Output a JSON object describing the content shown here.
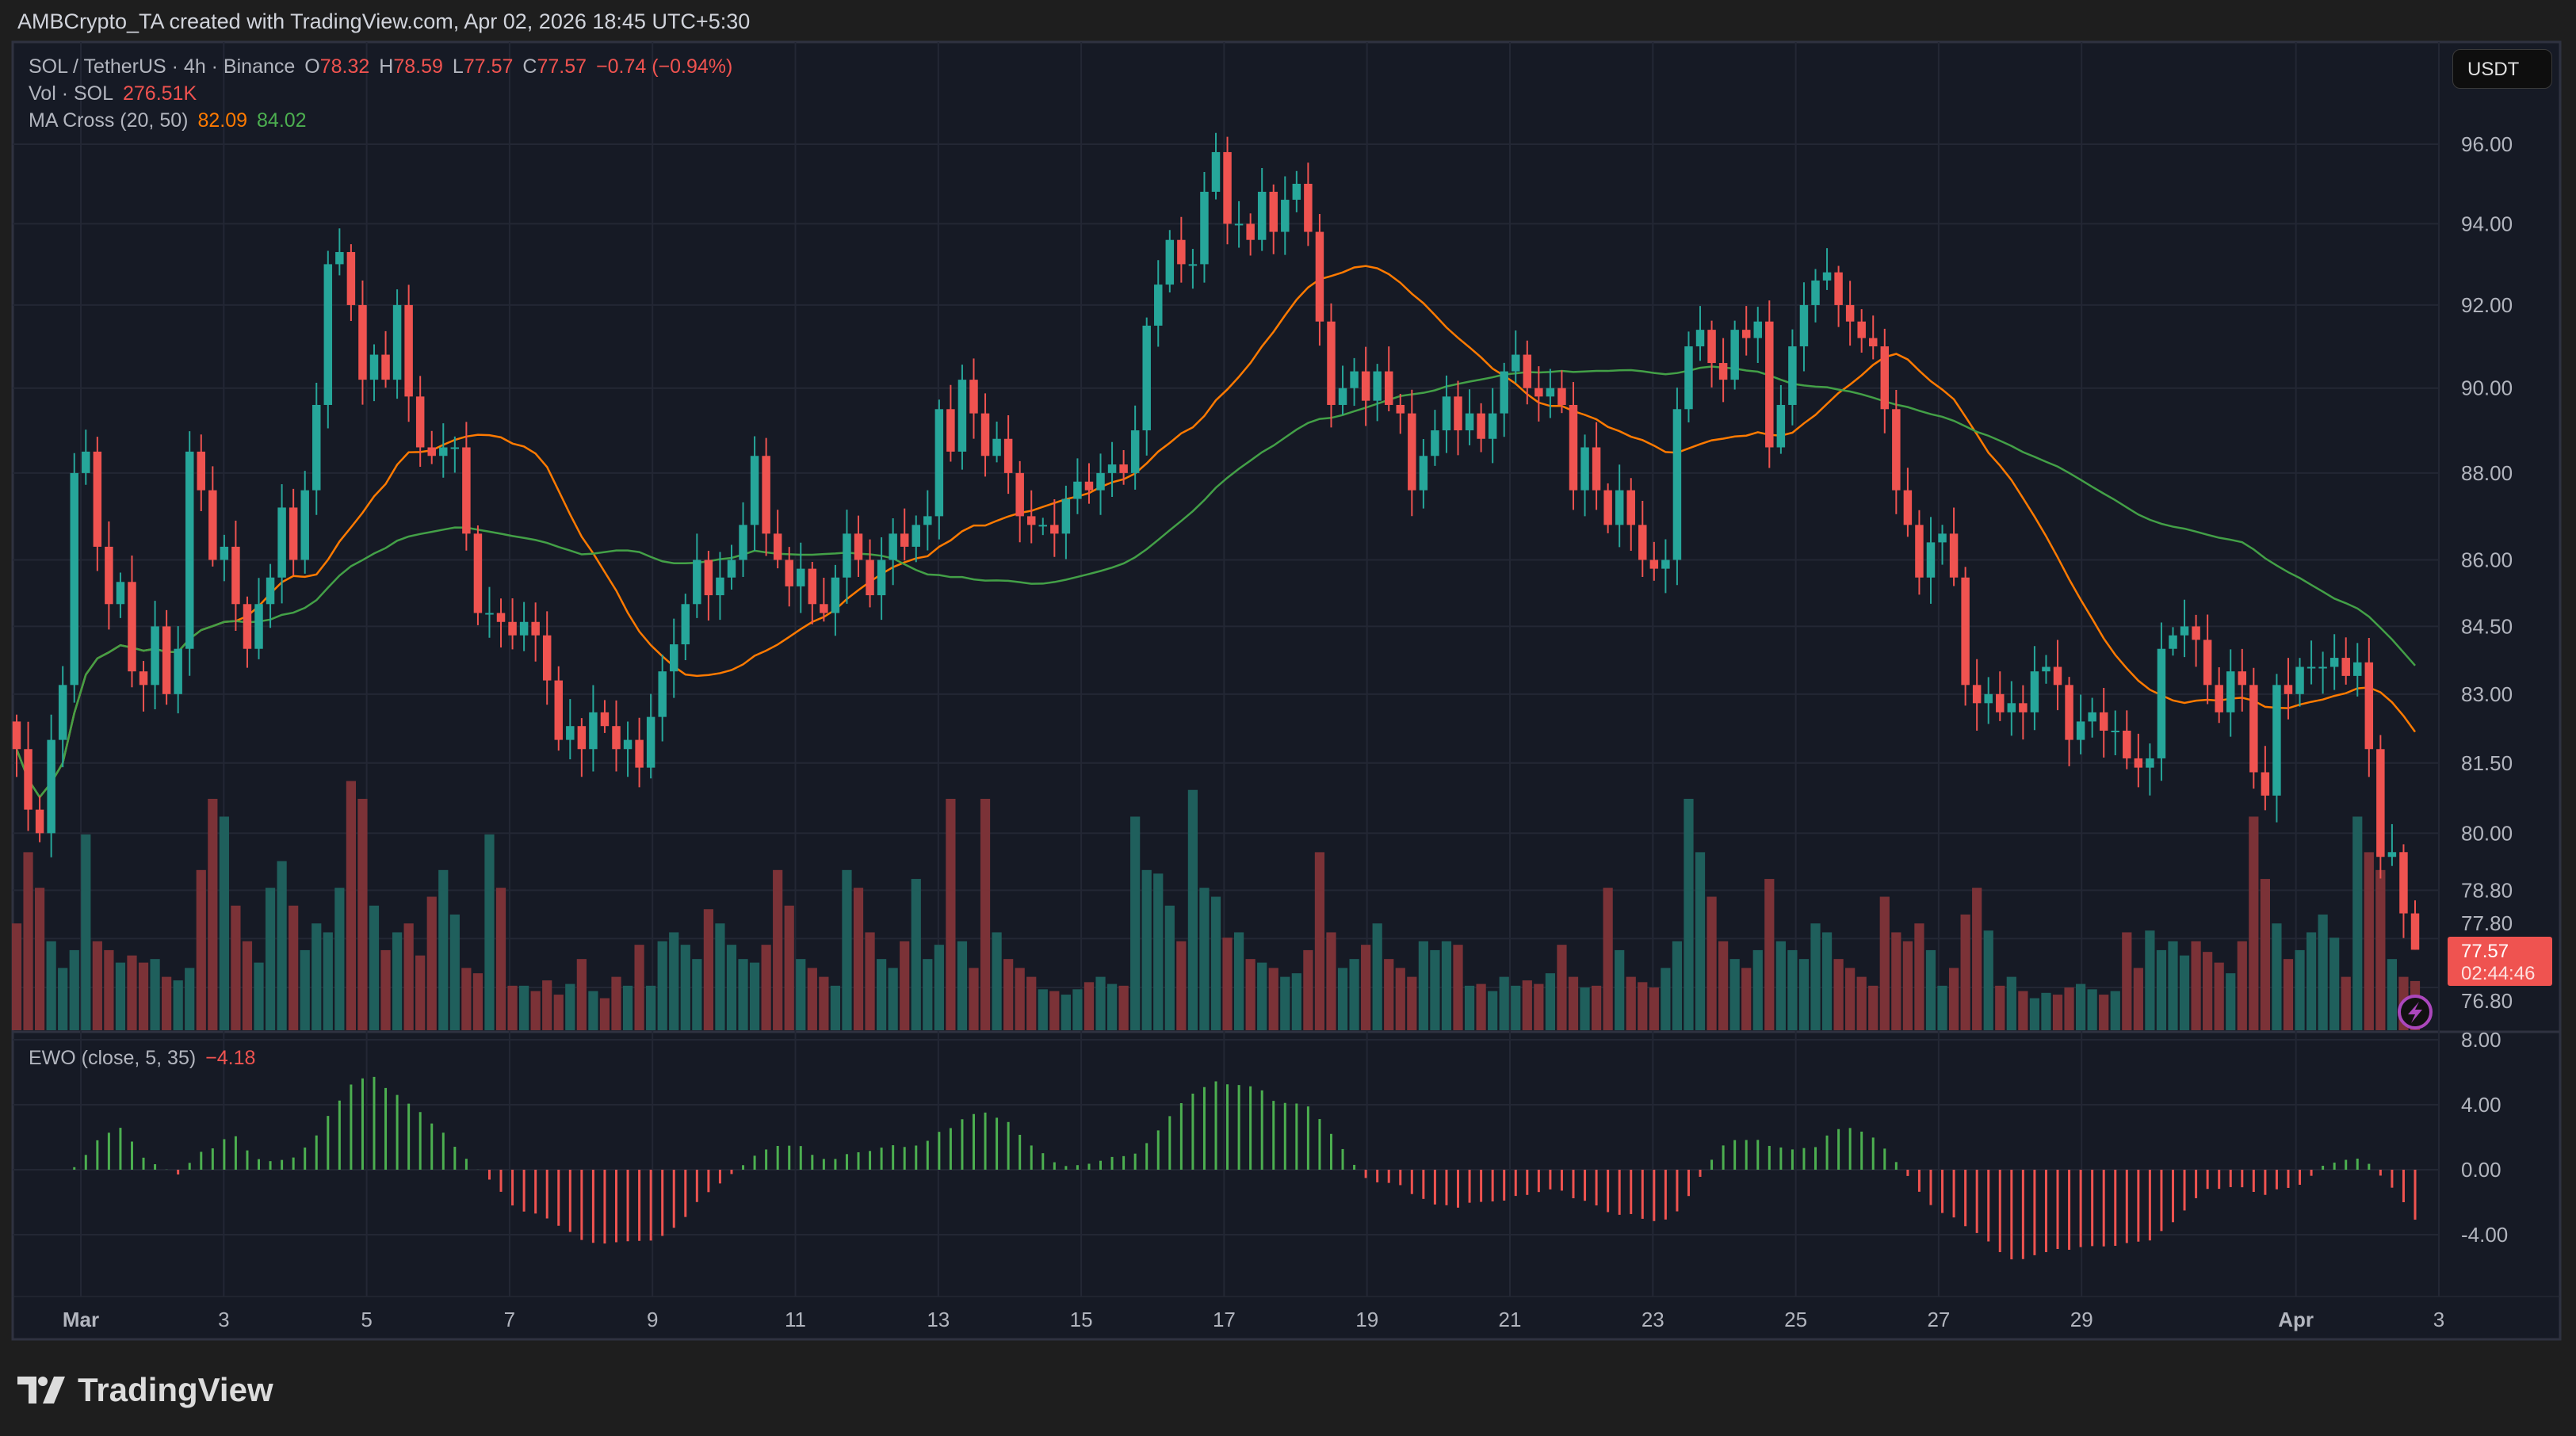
{
  "header": {
    "attribution": "AMBCrypto_TA created with TradingView.com, Apr 02, 2026 18:45 UTC+5:30"
  },
  "legend": {
    "symbol": "SOL / TetherUS · 4h · Binance",
    "o_label": "O",
    "o": "78.32",
    "h_label": "H",
    "h": "78.59",
    "l_label": "L",
    "l": "77.57",
    "c_label": "C",
    "c": "77.57",
    "change": "−0.74 (−0.94%)",
    "vol_label": "Vol · SOL",
    "vol": "276.51K",
    "ma_label": "MA Cross (20, 50)",
    "ma20": "82.09",
    "ma50": "84.02",
    "ewo_label": "EWO (close, 5, 35)",
    "ewo": "−4.18"
  },
  "currency_button": "USDT",
  "last_price": {
    "price": "77.57",
    "countdown": "02:44:46"
  },
  "brand": "TradingView",
  "colors": {
    "up": "#26a69a",
    "down": "#ef5350",
    "vol_up": "#1f5f5c",
    "vol_down": "#7b3237",
    "ma20": "#ff7a00",
    "ma50": "#43a047",
    "ewo_up": "#4caf50",
    "ewo_down": "#ef5350",
    "bg": "#161a25"
  },
  "chart_data": {
    "type": "candlestick",
    "title": "SOL / TetherUS · 4h · Binance",
    "price_axis_ticks": [
      "96.00",
      "94.00",
      "92.00",
      "90.00",
      "88.00",
      "86.00",
      "84.50",
      "83.00",
      "81.50",
      "80.00",
      "78.80",
      "77.80",
      "76.80"
    ],
    "price_range": [
      76.8,
      96.0
    ],
    "ewo_axis_ticks": [
      "8.00",
      "4.00",
      "0.00",
      "-4.00"
    ],
    "ewo_range": [
      -4,
      8
    ],
    "time_ticks": [
      {
        "label": "Mar",
        "day": 0
      },
      {
        "label": "3",
        "day": 2
      },
      {
        "label": "5",
        "day": 4
      },
      {
        "label": "7",
        "day": 6
      },
      {
        "label": "9",
        "day": 8
      },
      {
        "label": "11",
        "day": 10
      },
      {
        "label": "13",
        "day": 12
      },
      {
        "label": "15",
        "day": 14
      },
      {
        "label": "17",
        "day": 16
      },
      {
        "label": "19",
        "day": 18
      },
      {
        "label": "21",
        "day": 20
      },
      {
        "label": "23",
        "day": 22
      },
      {
        "label": "25",
        "day": 24
      },
      {
        "label": "27",
        "day": 26
      },
      {
        "label": "29",
        "day": 28
      },
      {
        "label": "Apr",
        "day": 31
      },
      {
        "label": "3",
        "day": 33
      }
    ],
    "ma_periods": [
      20,
      50
    ],
    "ewo_params": [
      5,
      35
    ],
    "closes": [
      81.8,
      80.5,
      80,
      82,
      83.2,
      88,
      88.5,
      86.3,
      85,
      85.5,
      83.5,
      83.2,
      84.5,
      83,
      84,
      88.5,
      87.6,
      86,
      86.3,
      85,
      84,
      85,
      85.6,
      87.2,
      86,
      87.6,
      89.6,
      93,
      93.3,
      92,
      90.2,
      90.8,
      90.2,
      92,
      89.8,
      88.6,
      88.4,
      88.6,
      88.6,
      86.6,
      84.8,
      84.8,
      84.6,
      84.3,
      84.6,
      84.3,
      83.3,
      82,
      82.3,
      81.8,
      82.6,
      82.3,
      81.8,
      82,
      81.4,
      82.5,
      83.5,
      84.1,
      85,
      86,
      85.2,
      85.6,
      86,
      86.8,
      88.4,
      86.6,
      86,
      85.4,
      85.8,
      85,
      84.8,
      85.6,
      86.6,
      86,
      85.2,
      86,
      86.6,
      86.3,
      86.8,
      87,
      89.5,
      88.5,
      90.2,
      89.4,
      88.4,
      88.8,
      88,
      87,
      86.8,
      86.8,
      86.6,
      87.4,
      87.8,
      87.6,
      88,
      88.2,
      88,
      89,
      91.5,
      92.5,
      93.6,
      93,
      93,
      94.8,
      95.8,
      94,
      94,
      93.6,
      94.8,
      93.8,
      94.6,
      95,
      93.8,
      91.6,
      89.6,
      90,
      90.4,
      89.7,
      90.4,
      89.6,
      89.4,
      87.6,
      88.4,
      89,
      89.8,
      89,
      89.4,
      88.8,
      89.4,
      90.4,
      90.8,
      90,
      89.8,
      90,
      89.6,
      87.6,
      88.6,
      87.6,
      86.8,
      87.6,
      86.8,
      86,
      85.8,
      86,
      89.5,
      91,
      91.4,
      90.6,
      90.2,
      91.4,
      91.2,
      91.6,
      88.6,
      89.6,
      91,
      92,
      92.6,
      92.8,
      92,
      91.6,
      91.2,
      91,
      89.5,
      87.6,
      86.8,
      85.6,
      86.4,
      86.6,
      85.6,
      83.2,
      82.8,
      83,
      82.6,
      82.8,
      82.6,
      83.5,
      83.6,
      83.2,
      82,
      82.4,
      82.6,
      82.2,
      82.2,
      81.6,
      81.4,
      81.6,
      84,
      84.3,
      84.5,
      84.2,
      83.2,
      82.6,
      83.5,
      83.2,
      81.3,
      80.8,
      83.2,
      83,
      83.6,
      83.6,
      83.6,
      83.8,
      83.4,
      83.7,
      81.8,
      79.5,
      79.6,
      78.32,
      77.57
    ],
    "volumes_k": [
      600,
      1000,
      800,
      500,
      350,
      450,
      1100,
      500,
      450,
      380,
      420,
      380,
      400,
      300,
      280,
      350,
      900,
      1300,
      1200,
      700,
      500,
      380,
      800,
      950,
      700,
      450,
      600,
      550,
      800,
      1400,
      1300,
      700,
      450,
      550,
      600,
      420,
      750,
      900,
      650,
      350,
      320,
      1100,
      800,
      250,
      250,
      220,
      280,
      200,
      260,
      400,
      220,
      180,
      300,
      250,
      480,
      250,
      500,
      550,
      480,
      400,
      680,
      600,
      480,
      400,
      380,
      480,
      900,
      700,
      400,
      350,
      300,
      250,
      900,
      800,
      550,
      400,
      350,
      500,
      850,
      400,
      480,
      1300,
      500,
      350,
      1300,
      550,
      400,
      350,
      300,
      230,
      220,
      200,
      230,
      270,
      300,
      260,
      250,
      1200,
      900,
      880,
      700,
      500,
      1350,
      800,
      750,
      520,
      550,
      400,
      380,
      350,
      300,
      320,
      450,
      1000,
      550,
      350,
      400,
      480,
      600,
      400,
      350,
      300,
      500,
      450,
      500,
      480,
      250,
      260,
      220,
      300,
      250,
      280,
      260,
      320,
      480,
      300,
      240,
      250,
      800,
      450,
      300,
      270,
      240,
      350,
      500,
      1300,
      1000,
      750,
      500,
      400,
      350,
      450,
      850,
      500,
      450,
      400,
      600,
      550,
      400,
      350,
      300,
      250,
      750,
      550,
      500,
      600,
      450,
      250,
      350,
      650,
      800,
      560,
      250,
      300,
      220,
      180,
      210,
      200,
      240,
      260,
      230,
      200,
      220,
      550,
      350,
      560,
      450,
      500,
      420,
      500,
      440,
      380,
      320,
      500,
      1200,
      850,
      600,
      400,
      450,
      550,
      650,
      520,
      300,
      1200,
      1000,
      900,
      400,
      300,
      276.51
    ],
    "last_candle": {
      "open": 78.32,
      "high": 78.59,
      "low": 77.57,
      "close": 77.57
    }
  }
}
